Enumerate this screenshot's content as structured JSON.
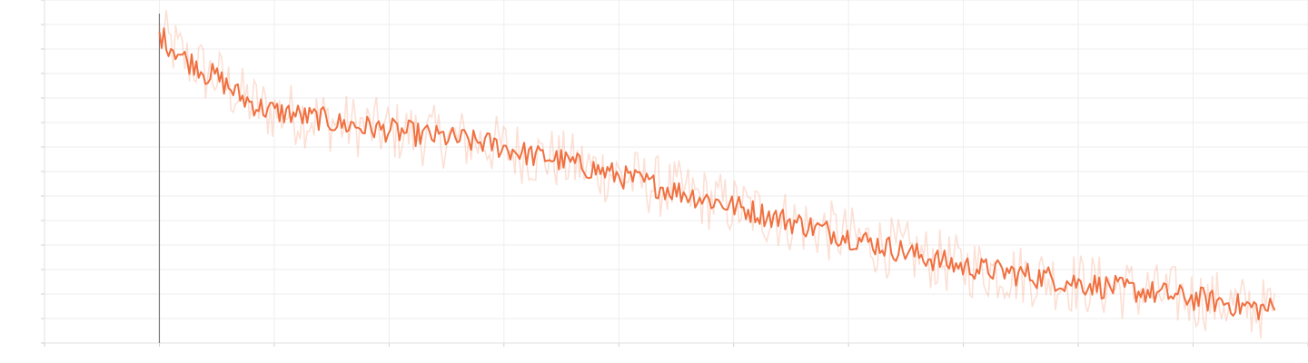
{
  "chart_data": {
    "type": "line",
    "title": "",
    "xlabel": "",
    "ylabel": "",
    "xlim": [
      -1,
      10
    ],
    "ylim": [
      0,
      14
    ],
    "x_ticks": [
      -1,
      0,
      1,
      2,
      3,
      4,
      5,
      6,
      7,
      8,
      9,
      10
    ],
    "y_ticks": [
      0,
      1,
      2,
      3,
      4,
      5,
      6,
      7,
      8,
      9,
      10,
      11,
      12,
      13,
      14
    ],
    "grid": true,
    "legend": "none",
    "reference_line_x": 0,
    "series": [
      {
        "role": "smoothed",
        "color": "#f07040",
        "x_start": 0,
        "x_end": 9.65,
        "values": [
          12.6,
          12.2,
          11.9,
          11.5,
          11.4,
          11.0,
          10.9,
          10.6,
          10.3,
          10.0,
          9.8,
          9.6,
          9.5,
          9.4,
          9.4,
          9.3,
          9.2,
          9.2,
          9.1,
          9.0,
          8.9,
          8.9,
          8.8,
          8.8,
          8.7,
          8.7,
          8.6,
          8.6,
          8.5,
          8.5,
          8.4,
          8.4,
          8.3,
          8.3,
          8.2,
          8.2,
          8.1,
          8.0,
          7.9,
          7.8,
          7.7,
          7.6,
          7.6,
          7.5,
          7.4,
          7.3,
          7.2,
          7.1,
          7.0,
          6.9,
          6.8,
          6.7,
          6.6,
          6.5,
          6.4,
          6.3,
          6.2,
          6.1,
          6.0,
          5.9,
          5.8,
          5.7,
          5.6,
          5.5,
          5.4,
          5.3,
          5.2,
          5.1,
          5.0,
          4.9,
          4.8,
          4.7,
          4.6,
          4.5,
          4.4,
          4.3,
          4.2,
          4.1,
          4.0,
          3.9,
          3.8,
          3.7,
          3.6,
          3.5,
          3.4,
          3.3,
          3.2,
          3.1,
          3.1,
          3.0,
          3.0,
          2.9,
          2.9,
          2.8,
          2.8,
          2.7,
          2.7,
          2.6,
          2.5,
          2.5,
          2.4,
          2.4,
          2.3,
          2.3,
          2.2,
          2.2,
          2.1,
          2.1,
          2.0,
          2.0,
          1.9,
          1.9,
          1.8,
          1.8,
          1.7,
          1.7,
          1.6,
          1.5,
          1.5,
          1.4,
          1.4
        ]
      }
    ]
  }
}
